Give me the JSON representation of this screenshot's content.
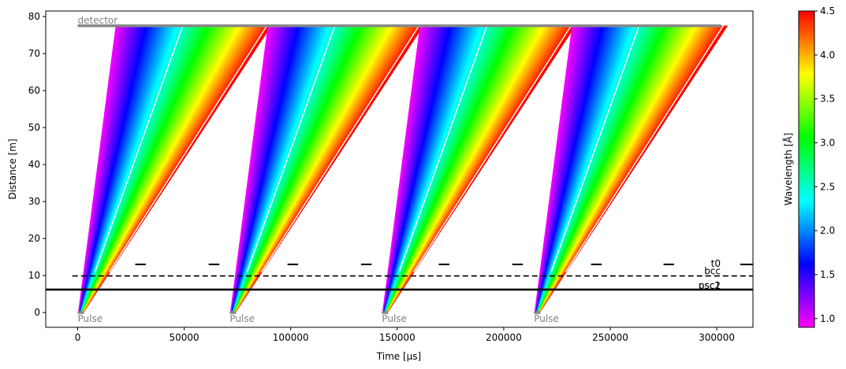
{
  "chart_data": {
    "type": "time-distance diagram",
    "xlabel": "Time [µs]",
    "ylabel": "Distance [m]",
    "xlim": [
      -15000,
      317000
    ],
    "ylim": [
      -4,
      81.5
    ],
    "xticks": [
      0,
      50000,
      100000,
      150000,
      200000,
      250000,
      300000
    ],
    "xtick_labels": [
      "0",
      "50000",
      "100000",
      "150000",
      "200000",
      "250000",
      "300000"
    ],
    "yticks": [
      0,
      10,
      20,
      30,
      40,
      50,
      60,
      70,
      80
    ],
    "ytick_labels": [
      "0",
      "10",
      "20",
      "30",
      "40",
      "50",
      "60",
      "70",
      "80"
    ],
    "colorbar": {
      "label": "Wavelength [Å]",
      "range": [
        0.9,
        4.5
      ],
      "ticks": [
        1.0,
        1.5,
        2.0,
        2.5,
        3.0,
        3.5,
        4.0,
        4.5
      ],
      "tick_labels": [
        "1.0",
        "1.5",
        "2.0",
        "2.5",
        "3.0",
        "3.5",
        "4.0",
        "4.5"
      ],
      "colormap": "gist_rainbow_r"
    },
    "pulses": [
      {
        "label": "Pulse",
        "t_start": 0,
        "t_end": 3000,
        "distance": 0
      },
      {
        "label": "Pulse",
        "t_start": 71400,
        "t_end": 74400,
        "distance": 0
      },
      {
        "label": "Pulse",
        "t_start": 142800,
        "t_end": 145800,
        "distance": 0
      },
      {
        "label": "Pulse",
        "t_start": 214200,
        "t_end": 217200,
        "distance": 0
      }
    ],
    "frames": [
      {
        "t0": 0
      },
      {
        "t0": 71400
      },
      {
        "t0": 142800
      },
      {
        "t0": 214200
      }
    ],
    "wavelength_range": [
      0.9,
      4.5
    ],
    "gap_wavelengths": [
      2.45,
      4.4
    ],
    "detector": {
      "label": "detector",
      "distance": 77.5,
      "t_start": 0,
      "t_end": 302000
    },
    "choppers": [
      {
        "label": "t0",
        "distance": 13.0,
        "style": "dashes"
      },
      {
        "label": "bcc",
        "distance": 9.9,
        "style": "dashed"
      },
      {
        "label": "psc1",
        "distance": 6.2,
        "style": "solid"
      },
      {
        "label": "psc2",
        "distance": 6.2,
        "style": "solid"
      }
    ],
    "t0_chopper_openings": [
      [
        0,
        27000
      ],
      [
        32000,
        61500
      ],
      [
        66500,
        98500
      ],
      [
        103500,
        133000
      ],
      [
        138000,
        169500
      ],
      [
        174500,
        204000
      ],
      [
        209000,
        241000
      ],
      [
        246000,
        275000
      ],
      [
        280000,
        311000
      ]
    ]
  }
}
